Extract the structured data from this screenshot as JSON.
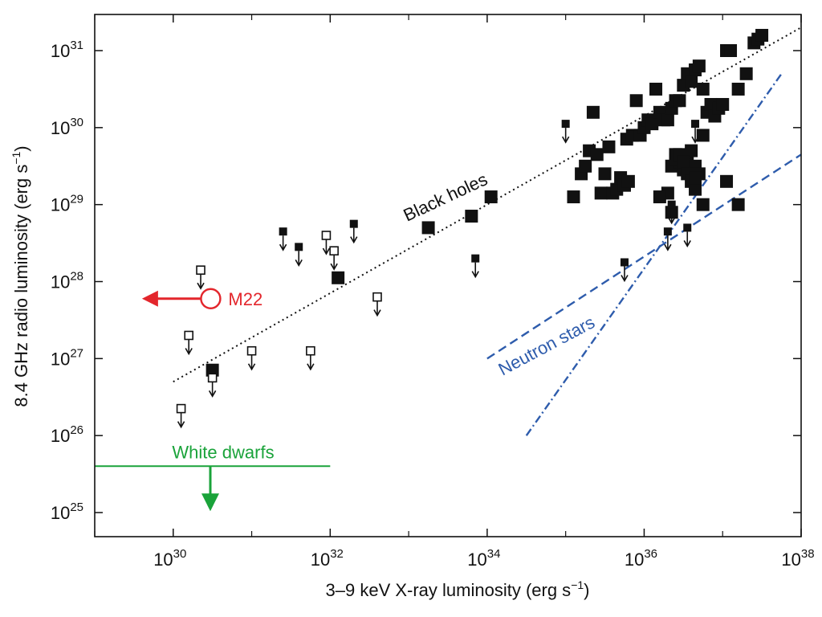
{
  "chart_data": {
    "type": "scatter",
    "xlabel": "3–9 keV X-ray luminosity (erg s",
    "xlabel_sup": "−1",
    "xlabel_end": ")",
    "ylabel": "8.4 GHz radio luminosity (erg s",
    "ylabel_sup": "−1",
    "ylabel_end": ")",
    "x_scale": "log",
    "y_scale": "log",
    "xlim": [
      1e+29,
      1e+38
    ],
    "ylim": [
      1e+25,
      1e+31
    ],
    "x_ticks": [
      {
        "value": 1e+30,
        "base": "10",
        "exp": "30"
      },
      {
        "value": 1e+32,
        "base": "10",
        "exp": "32"
      },
      {
        "value": 1e+34,
        "base": "10",
        "exp": "34"
      },
      {
        "value": 1e+36,
        "base": "10",
        "exp": "36"
      },
      {
        "value": 1e+38,
        "base": "10",
        "exp": "38"
      }
    ],
    "y_ticks": [
      {
        "value": 1e+25,
        "base": "10",
        "exp": "25"
      },
      {
        "value": 1e+26,
        "base": "10",
        "exp": "26"
      },
      {
        "value": 1e+27,
        "base": "10",
        "exp": "27"
      },
      {
        "value": 1e+28,
        "base": "10",
        "exp": "28"
      },
      {
        "value": 1e+29,
        "base": "10",
        "exp": "29"
      },
      {
        "value": 1e+30,
        "base": "10",
        "exp": "30"
      },
      {
        "value": 1e+31,
        "base": "10",
        "exp": "31"
      }
    ],
    "grid": false,
    "series": [
      {
        "name": "Black holes",
        "marker": "filled-square",
        "color": "#111111",
        "points": [
          [
            1.26e+35,
            1.26e+29
          ],
          [
            1.58e+35,
            2.51e+29
          ],
          [
            1.78e+35,
            3.16e+29
          ],
          [
            2e+35,
            5e+29
          ],
          [
            2.24e+35,
            1.58e+30
          ],
          [
            2.51e+35,
            4.47e+29
          ],
          [
            2.82e+35,
            1.41e+29
          ],
          [
            3.16e+35,
            2.51e+29
          ],
          [
            3.55e+35,
            5.62e+29
          ],
          [
            3.98e+35,
            1.41e+29
          ],
          [
            4.47e+35,
            1.58e+29
          ],
          [
            5.01e+35,
            2.24e+29
          ],
          [
            5.62e+35,
            1.78e+29
          ],
          [
            6.31e+35,
            2e+29
          ],
          [
            6e+35,
            7.08e+29
          ],
          [
            7.08e+35,
            7.94e+29
          ],
          [
            7.94e+35,
            2.24e+30
          ],
          [
            8.91e+35,
            7.94e+29
          ],
          [
            1e+36,
            1e+30
          ],
          [
            1.12e+36,
            1.26e+30
          ],
          [
            1.26e+36,
            1.12e+30
          ],
          [
            1.41e+36,
            3.16e+30
          ],
          [
            1.58e+36,
            1.58e+30
          ],
          [
            1.78e+36,
            1.26e+30
          ],
          [
            2e+36,
            1.26e+30
          ],
          [
            2.24e+36,
            1.78e+30
          ],
          [
            2.51e+36,
            2.24e+30
          ],
          [
            2.82e+36,
            2.24e+30
          ],
          [
            3.16e+36,
            3.55e+30
          ],
          [
            3.55e+36,
            5.01e+30
          ],
          [
            3.98e+36,
            3.98e+30
          ],
          [
            4.47e+36,
            5.62e+30
          ],
          [
            5.01e+36,
            6.31e+30
          ],
          [
            5.62e+36,
            3.16e+30
          ],
          [
            6.31e+36,
            1.58e+30
          ],
          [
            7.08e+36,
            2e+30
          ],
          [
            7.94e+36,
            1.41e+30
          ],
          [
            8.91e+36,
            1.78e+30
          ],
          [
            1e+37,
            2e+30
          ],
          [
            1.12e+37,
            1e+31
          ],
          [
            1.26e+37,
            1e+31
          ],
          [
            1.58e+37,
            3.16e+30
          ],
          [
            2e+37,
            5.01e+30
          ],
          [
            2.51e+37,
            1.26e+31
          ],
          [
            2.82e+37,
            1.41e+31
          ],
          [
            3.16e+37,
            1.58e+31
          ],
          [
            2e+36,
            1.41e+29
          ],
          [
            1.58e+36,
            1.26e+29
          ],
          [
            2.24e+36,
            3.16e+29
          ],
          [
            2.51e+36,
            4.47e+29
          ],
          [
            2.82e+36,
            3.55e+29
          ],
          [
            3.16e+36,
            2.82e+29
          ],
          [
            3.55e+36,
            3.98e+29
          ],
          [
            3.98e+36,
            5.01e+29
          ],
          [
            4.47e+36,
            3.16e+29
          ],
          [
            5.01e+36,
            2.51e+29
          ],
          [
            2.51e+36,
            3.98e+29
          ],
          [
            2.82e+36,
            4.47e+29
          ],
          [
            3.16e+36,
            3.55e+29
          ],
          [
            3.55e+36,
            2.51e+29
          ],
          [
            3.98e+36,
            2e+29
          ],
          [
            4.47e+36,
            1.58e+29
          ],
          [
            5.62e+36,
            7.94e+29
          ],
          [
            1.12e+37,
            2e+29
          ],
          [
            1.58e+37,
            1e+29
          ],
          [
            4.47e+36,
            2.24e+29
          ],
          [
            2.24e+36,
            7.94e+28
          ],
          [
            5.62e+36,
            1e+29
          ],
          [
            1.12e+34,
            1.26e+29
          ],
          [
            6.31e+33,
            7.08e+28
          ],
          [
            1.78e+33,
            5.01e+28
          ],
          [
            1.26e+32,
            1.12e+28
          ],
          [
            3.16e+30,
            7.08e+26
          ]
        ]
      },
      {
        "marker": "filled-square-upper-limit",
        "color": "#111111",
        "points": [
          [
            2.51e+31,
            4.47e+28
          ],
          [
            3.98e+31,
            2.82e+28
          ],
          [
            2e+32,
            5.62e+28
          ],
          [
            7.08e+33,
            2e+28
          ],
          [
            1e+35,
            1.12e+30
          ],
          [
            5.62e+35,
            1.78e+28
          ],
          [
            2e+36,
            4.47e+28
          ],
          [
            2.24e+36,
            1e+29
          ],
          [
            3.55e+36,
            5.01e+28
          ],
          [
            4.47e+36,
            1.12e+30
          ]
        ]
      },
      {
        "marker": "open-square-upper-limit",
        "color": "#111111",
        "points": [
          [
            2.24e+30,
            1.41e+28
          ],
          [
            1.58e+30,
            2e+27
          ],
          [
            1.26e+30,
            2.24e+26
          ],
          [
            3.16e+30,
            5.62e+26
          ],
          [
            1e+31,
            1.26e+27
          ],
          [
            5.62e+31,
            1.26e+27
          ],
          [
            8.91e+31,
            3.98e+28
          ],
          [
            1.12e+32,
            2.51e+28
          ],
          [
            3.98e+32,
            6.31e+27
          ]
        ]
      }
    ],
    "m22": {
      "label": "M22",
      "x": 3e+30,
      "y": 6e+27,
      "arrow_to_x": 4e+29,
      "color": "#e3262c"
    },
    "black_hole_relation": {
      "label": "Black holes",
      "x_range": [
        1e+30,
        1e+38
      ],
      "y_start": 5e+26,
      "y_end": 2e+31
    },
    "neutron_stars": {
      "label": "Neutron stars",
      "color": "#2e5cac",
      "dashed": {
        "x_range": [
          1e+34,
          1e+38
        ],
        "y_start": 1e+27,
        "y_end": 4.47e+29
      },
      "dashdot": {
        "x_range": [
          3.16e+34,
          5.62e+37
        ],
        "y_start": 1e+26,
        "y_end": 5e+30
      }
    },
    "white_dwarfs": {
      "label": "White dwarfs",
      "x_range": [
        1e+29,
        1e+32
      ],
      "y": 4e+25,
      "color": "#1aa33a"
    }
  }
}
